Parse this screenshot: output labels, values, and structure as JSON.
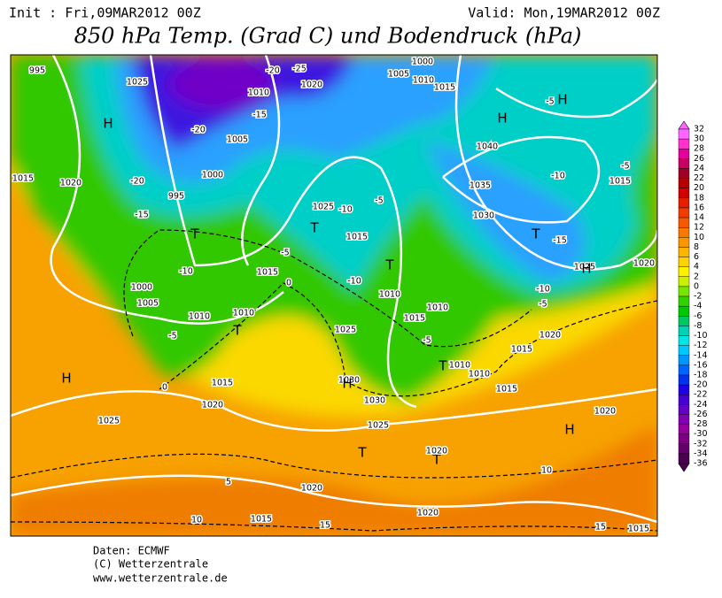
{
  "header": {
    "init": "Init : Fri,09MAR2012 00Z",
    "valid": "Valid: Mon,19MAR2012 00Z",
    "title": "850 hPa Temp. (Grad C) und Bodendruck (hPa)"
  },
  "map": {
    "labels": [
      "995",
      "1025",
      "1010",
      "1020",
      "-25",
      "-20",
      "1005",
      "1000",
      "1010",
      "1015",
      "H",
      "H",
      "H",
      "1040",
      "1035",
      "1030",
      "1025",
      "T",
      "T",
      "T",
      "H",
      "1020",
      "995",
      "1000",
      "1015",
      "1000",
      "1005",
      "1010",
      "1010",
      "T",
      "H",
      "1025",
      "1020",
      "1015",
      "1030",
      "H",
      "1030",
      "1025",
      "T",
      "T",
      "1020",
      "1020",
      "1020",
      "1015",
      "1020",
      "H",
      "1015",
      "10",
      "15",
      "15",
      "10",
      "5",
      "0",
      "0",
      "1015",
      "-10",
      "-15",
      "-20",
      "-20",
      "1005",
      "-15",
      "1010",
      "1015",
      "1010",
      "1025",
      "1015",
      "1010",
      "1010",
      "1015",
      "1020",
      "1015",
      "-5",
      "T",
      "T",
      "-5",
      "-10",
      "-5",
      "-10",
      "-15",
      "-5",
      "-5",
      "1015",
      "1020",
      "1025",
      "-10",
      "-5",
      "-5",
      "-10"
    ]
  },
  "colorbar": {
    "levels": [
      32,
      30,
      28,
      26,
      24,
      22,
      20,
      18,
      16,
      14,
      12,
      10,
      8,
      6,
      4,
      2,
      0,
      -2,
      -4,
      -6,
      -8,
      -10,
      -12,
      -14,
      -16,
      -18,
      -20,
      -22,
      -24,
      -26,
      -28,
      -30,
      -32,
      -34,
      -36
    ],
    "colors": [
      "#ff66ff",
      "#ff33cc",
      "#e6009e",
      "#c80064",
      "#a00028",
      "#b40000",
      "#d20000",
      "#e61e00",
      "#f03c00",
      "#f55a00",
      "#f87800",
      "#fa9600",
      "#fbb400",
      "#fcd200",
      "#fdf000",
      "#c8f000",
      "#78e600",
      "#32d200",
      "#00c800",
      "#00c864",
      "#00d2b4",
      "#00e6e6",
      "#00c8ff",
      "#0096ff",
      "#0064ff",
      "#0032f0",
      "#1e00e6",
      "#4600d2",
      "#6400c8",
      "#8200b4",
      "#96009b",
      "#7d0082",
      "#640069",
      "#4b0050"
    ]
  },
  "footer": [
    "Daten: ECMWF",
    "(C) Wetterzentrale",
    "www.wetterzentrale.de"
  ]
}
